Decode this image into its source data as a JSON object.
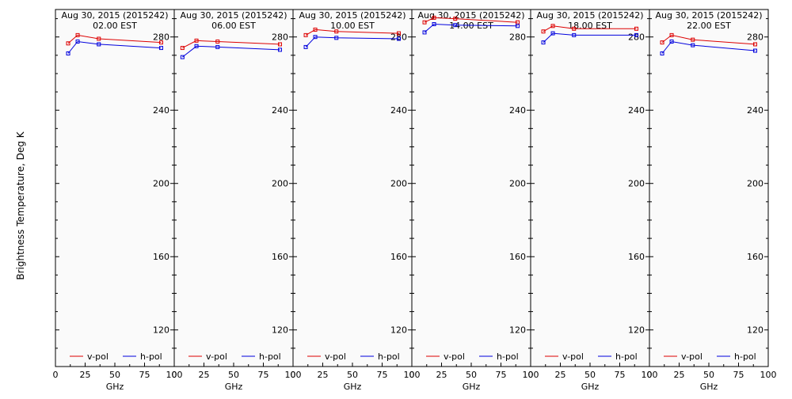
{
  "figure": {
    "ylabel": "Brightness Temperature, Deg K",
    "xlabel": "GHz",
    "date_label": "Aug 30, 2015 (2015242)"
  },
  "colors": {
    "v_pol": "#dd0000",
    "h_pol": "#0000dd",
    "background": "#fafafa"
  },
  "chart_data": [
    {
      "type": "line",
      "title": "Aug 30, 2015 (2015242)",
      "subtitle": "02.00 EST",
      "xlabel": "GHz",
      "xlim": [
        0,
        100
      ],
      "ylim": [
        100,
        295
      ],
      "xticks": [
        "0",
        "25",
        "50",
        "75",
        "100"
      ],
      "yticks": [
        "120",
        "160",
        "200",
        "240",
        "280"
      ],
      "legend": [
        "v-pol",
        "h-pol"
      ],
      "legend_position": "bottom",
      "x": [
        10.7,
        18.7,
        36.5,
        89.0
      ],
      "series": [
        {
          "name": "v-pol",
          "values": [
            276.5,
            281,
            279,
            277
          ]
        },
        {
          "name": "h-pol",
          "values": [
            271,
            277.5,
            276,
            274
          ]
        }
      ]
    },
    {
      "type": "line",
      "title": "Aug 30, 2015 (2015242)",
      "subtitle": "06.00 EST",
      "xlabel": "GHz",
      "xlim": [
        0,
        100
      ],
      "ylim": [
        100,
        295
      ],
      "xticks": [
        "0",
        "25",
        "50",
        "75",
        "100"
      ],
      "yticks": [
        "120",
        "160",
        "200",
        "240",
        "280"
      ],
      "legend": [
        "v-pol",
        "h-pol"
      ],
      "legend_position": "bottom",
      "x": [
        6.9,
        18.7,
        36.5,
        89.0
      ],
      "series": [
        {
          "name": "v-pol",
          "values": [
            274,
            278,
            277.5,
            276
          ]
        },
        {
          "name": "h-pol",
          "values": [
            269,
            275,
            274.5,
            273
          ]
        }
      ]
    },
    {
      "type": "line",
      "title": "Aug 30, 2015 (2015242)",
      "subtitle": "10.00 EST",
      "xlabel": "GHz",
      "xlim": [
        0,
        100
      ],
      "ylim": [
        100,
        295
      ],
      "xticks": [
        "0",
        "25",
        "50",
        "75",
        "100"
      ],
      "yticks": [
        "120",
        "160",
        "200",
        "240",
        "280"
      ],
      "legend": [
        "v-pol",
        "h-pol"
      ],
      "legend_position": "bottom",
      "x": [
        10.7,
        18.7,
        36.5,
        89.0
      ],
      "series": [
        {
          "name": "v-pol",
          "values": [
            281,
            284,
            283,
            282
          ]
        },
        {
          "name": "h-pol",
          "values": [
            274.5,
            280,
            279.5,
            279
          ]
        }
      ]
    },
    {
      "type": "line",
      "title": "Aug 30, 2015 (2015242)",
      "subtitle": "14.00 EST",
      "xlabel": "GHz",
      "xlim": [
        0,
        100
      ],
      "ylim": [
        100,
        295
      ],
      "xticks": [
        "0",
        "25",
        "50",
        "75",
        "100"
      ],
      "yticks": [
        "120",
        "160",
        "200",
        "240",
        "280"
      ],
      "legend": [
        "v-pol",
        "h-pol"
      ],
      "legend_position": "bottom",
      "x": [
        10.7,
        18.7,
        36.5,
        89.0
      ],
      "series": [
        {
          "name": "v-pol",
          "values": [
            288,
            290.5,
            290,
            288
          ]
        },
        {
          "name": "h-pol",
          "values": [
            282.5,
            287,
            286.5,
            286
          ]
        }
      ]
    },
    {
      "type": "line",
      "title": "Aug 30, 2015 (2015242)",
      "subtitle": "18.00 EST",
      "xlabel": "GHz",
      "xlim": [
        0,
        100
      ],
      "ylim": [
        100,
        295
      ],
      "xticks": [
        "0",
        "25",
        "50",
        "75",
        "100"
      ],
      "yticks": [
        "120",
        "160",
        "200",
        "240",
        "280"
      ],
      "legend": [
        "v-pol",
        "h-pol"
      ],
      "legend_position": "bottom",
      "x": [
        10.7,
        18.7,
        36.5,
        89.0
      ],
      "series": [
        {
          "name": "v-pol",
          "values": [
            283,
            286,
            284.5,
            284.5
          ]
        },
        {
          "name": "h-pol",
          "values": [
            277,
            282,
            281,
            281
          ]
        }
      ]
    },
    {
      "type": "line",
      "title": "Aug 30, 2015 (2015242)",
      "subtitle": "22.00 EST",
      "xlabel": "GHz",
      "xlim": [
        0,
        100
      ],
      "ylim": [
        100,
        295
      ],
      "xticks": [
        "0",
        "25",
        "50",
        "75",
        "100"
      ],
      "yticks": [
        "120",
        "160",
        "200",
        "240",
        "280"
      ],
      "legend": [
        "v-pol",
        "h-pol"
      ],
      "legend_position": "bottom",
      "x": [
        10.7,
        18.7,
        36.5,
        89.0
      ],
      "series": [
        {
          "name": "v-pol",
          "values": [
            277,
            281,
            278.5,
            276
          ]
        },
        {
          "name": "h-pol",
          "values": [
            271,
            277.5,
            275.5,
            272.5
          ]
        }
      ]
    }
  ]
}
